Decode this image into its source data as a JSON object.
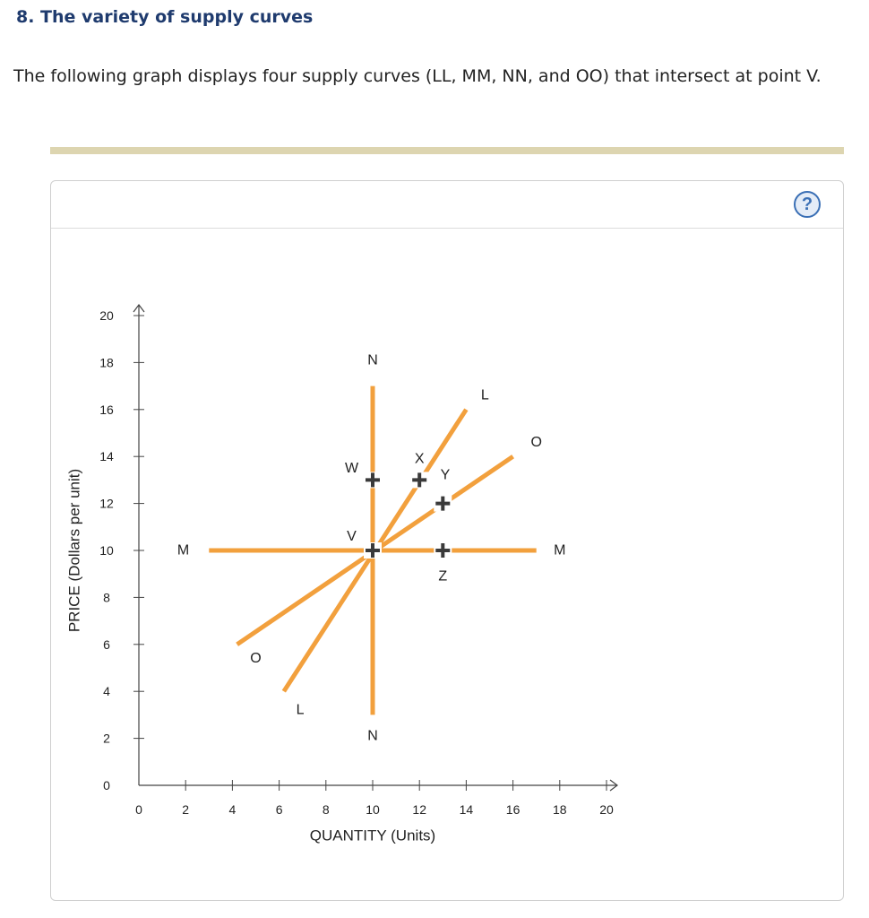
{
  "question": {
    "title": "8. The variety of supply curves",
    "description": "The following graph displays four supply curves (LL, MM, NN, and OO) that intersect at point V."
  },
  "help_icon": {
    "name": "help-icon",
    "glyph": "?"
  },
  "colors": {
    "curve": "#f2a03d",
    "axis": "#444444",
    "title": "#1f3b6e",
    "divider": "#ddd5b0",
    "help": "#3a6fb5"
  },
  "chart_data": {
    "type": "line",
    "xlabel": "QUANTITY (Units)",
    "ylabel": "PRICE (Dollars per unit)",
    "xlim": [
      0,
      20
    ],
    "ylim": [
      0,
      20
    ],
    "xticks": [
      0,
      2,
      4,
      6,
      8,
      10,
      12,
      14,
      16,
      18,
      20
    ],
    "yticks": [
      0,
      2,
      4,
      6,
      8,
      10,
      12,
      14,
      16,
      18,
      20
    ],
    "grid": false,
    "series": [
      {
        "name": "LL",
        "points": [
          [
            6.2,
            4.0
          ],
          [
            14.0,
            16.0
          ]
        ],
        "labels": [
          {
            "text": "L",
            "x": 6.9,
            "y": 3.2
          },
          {
            "text": "L",
            "x": 14.8,
            "y": 16.6
          }
        ]
      },
      {
        "name": "MM",
        "points": [
          [
            3.0,
            10.0
          ],
          [
            17.0,
            10.0
          ]
        ],
        "labels": [
          {
            "text": "M",
            "x": 1.9,
            "y": 10.0
          },
          {
            "text": "M",
            "x": 18.0,
            "y": 10.0
          }
        ]
      },
      {
        "name": "NN",
        "points": [
          [
            10.0,
            3.0
          ],
          [
            10.0,
            17.0
          ]
        ],
        "labels": [
          {
            "text": "N",
            "x": 10.0,
            "y": 2.1
          },
          {
            "text": "N",
            "x": 10.0,
            "y": 18.1
          }
        ]
      },
      {
        "name": "OO",
        "points": [
          [
            4.2,
            6.0
          ],
          [
            16.0,
            14.0
          ]
        ],
        "labels": [
          {
            "text": "O",
            "x": 5.0,
            "y": 5.4
          },
          {
            "text": "O",
            "x": 17.0,
            "y": 14.6
          }
        ]
      }
    ],
    "points": [
      {
        "name": "V",
        "x": 10.0,
        "y": 10.0,
        "label_dx": -0.9,
        "label_dy": 0.6
      },
      {
        "name": "W",
        "x": 10.0,
        "y": 13.0,
        "label_dx": -0.9,
        "label_dy": 0.5
      },
      {
        "name": "X",
        "x": 12.0,
        "y": 13.0,
        "label_dx": 0.0,
        "label_dy": 0.9
      },
      {
        "name": "Y",
        "x": 13.0,
        "y": 12.0,
        "label_dx": 0.1,
        "label_dy": 1.2
      },
      {
        "name": "Z",
        "x": 13.0,
        "y": 10.0,
        "label_dx": 0.0,
        "label_dy": -1.1
      }
    ]
  }
}
